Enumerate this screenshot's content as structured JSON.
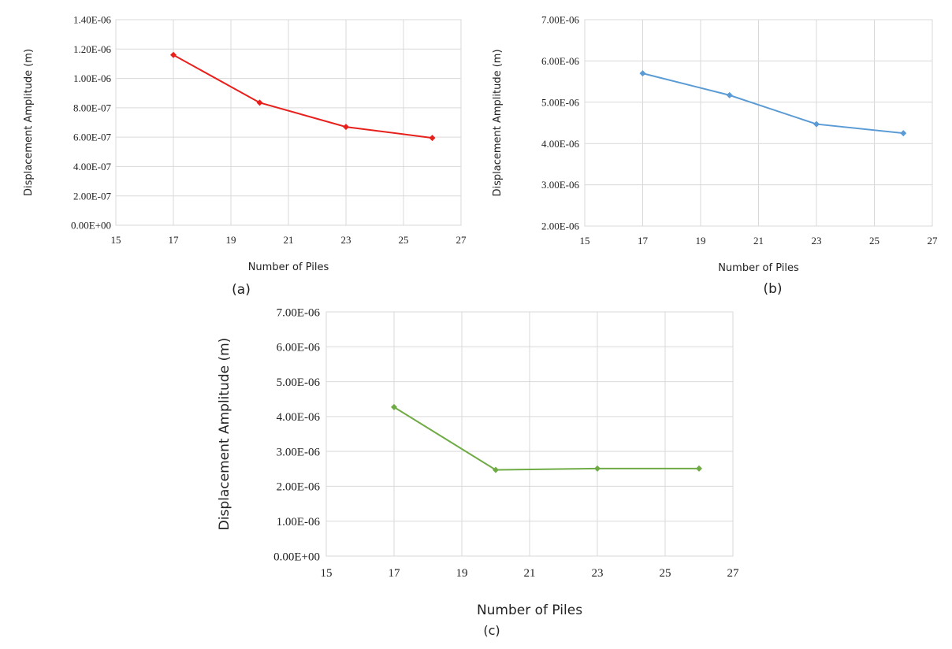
{
  "chart_data": [
    {
      "type": "line",
      "panel_label": "(a)",
      "xlabel": "Number of Piles",
      "ylabel": "Displacement Amplitude (m)",
      "xlim": [
        15,
        27
      ],
      "ylim": [
        0,
        1.4e-06
      ],
      "x_ticks": [
        "15",
        "17",
        "19",
        "21",
        "23",
        "25",
        "27"
      ],
      "y_ticks": [
        "0.00E+00",
        "2.00E-07",
        "4.00E-07",
        "6.00E-07",
        "8.00E-07",
        "1.00E-06",
        "1.20E-06",
        "1.40E-06"
      ],
      "grid": true,
      "series": [
        {
          "color": "#e8201c",
          "marker": "diamond",
          "x": [
            17,
            20,
            23,
            26
          ],
          "y": [
            1.16e-06,
            8.35e-07,
            6.7e-07,
            5.95e-07
          ]
        }
      ]
    },
    {
      "type": "line",
      "panel_label": "(b)",
      "xlabel": "Number of Piles",
      "ylabel": "Displacement Amplitude (m)",
      "xlim": [
        15,
        27
      ],
      "ylim": [
        2e-06,
        7e-06
      ],
      "x_ticks": [
        "15",
        "17",
        "19",
        "21",
        "23",
        "25",
        "27"
      ],
      "y_ticks": [
        "2.00E-06",
        "3.00E-06",
        "4.00E-06",
        "5.00E-06",
        "6.00E-06",
        "7.00E-06"
      ],
      "grid": true,
      "series": [
        {
          "color": "#5b9bd5",
          "marker": "diamond",
          "x": [
            17,
            20,
            23,
            26
          ],
          "y": [
            5.7e-06,
            5.17e-06,
            4.47e-06,
            4.25e-06
          ]
        }
      ]
    },
    {
      "type": "line",
      "panel_label": "(c)",
      "xlabel": "Number of Piles",
      "ylabel": "Displacement Amplitude (m)",
      "xlim": [
        15,
        27
      ],
      "ylim": [
        0,
        7e-06
      ],
      "x_ticks": [
        "15",
        "17",
        "19",
        "21",
        "23",
        "25",
        "27"
      ],
      "y_ticks": [
        "0.00E+00",
        "1.00E-06",
        "2.00E-06",
        "3.00E-06",
        "4.00E-06",
        "5.00E-06",
        "6.00E-06",
        "7.00E-06"
      ],
      "grid": true,
      "series": [
        {
          "color": "#6fab45",
          "marker": "diamond",
          "x": [
            17,
            20,
            23,
            26
          ],
          "y": [
            4.27e-06,
            2.47e-06,
            2.51e-06,
            2.51e-06
          ]
        }
      ]
    }
  ]
}
